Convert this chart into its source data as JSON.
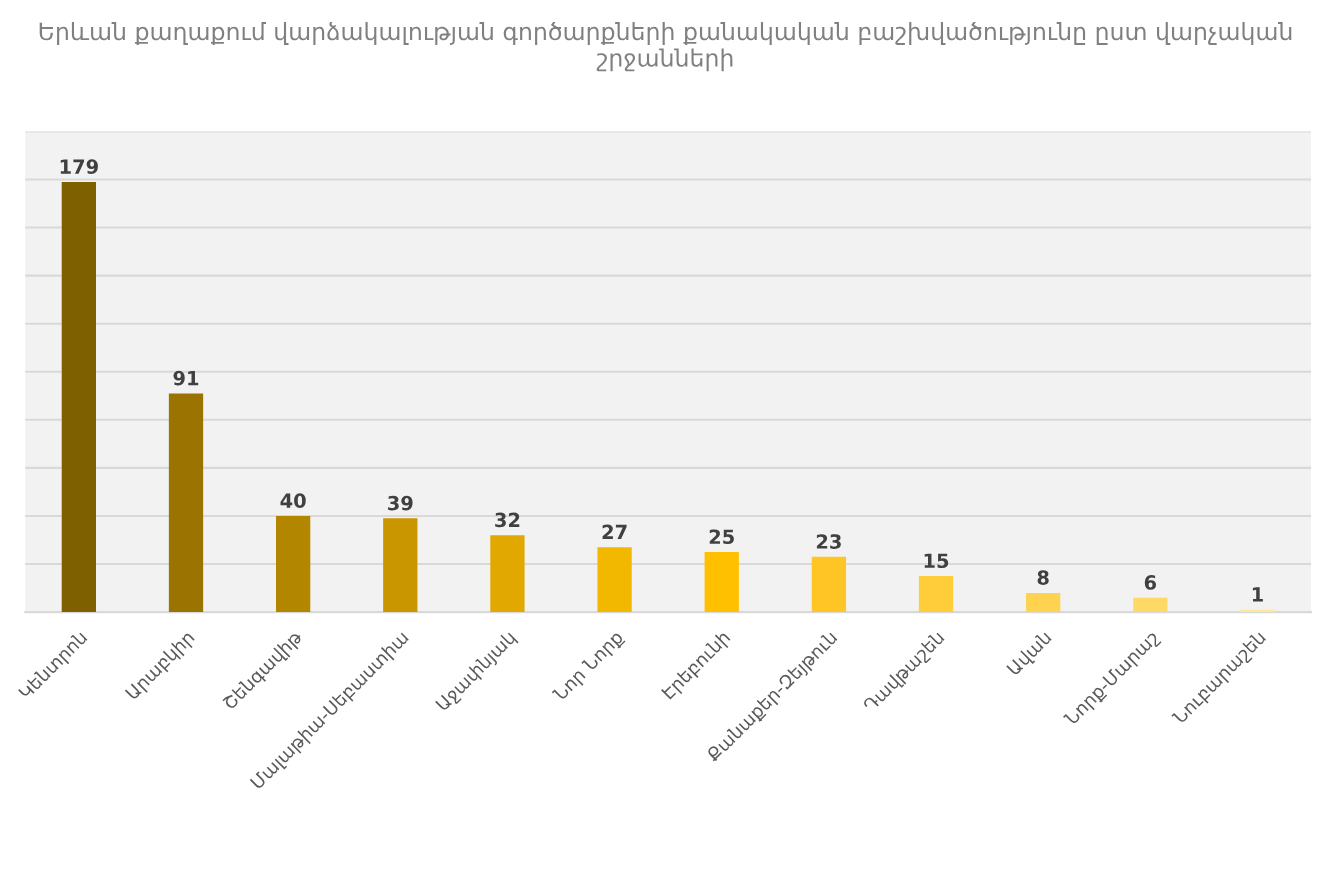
{
  "chart_data": {
    "type": "bar",
    "title": "Երևան քաղաքում վարձակալության գործարքների քանակական բաշխվածությունը ըստ վարչական շրջանների",
    "categories": [
      "Կենտրոն",
      "Արաբկիր",
      "Շենգավիթ",
      "Մալաթիա-Սեբաստիա",
      "Աջափնյակ",
      "Նոր Նորք",
      "Էրեբունի",
      "Քանաքեր-Զեյթուն",
      "Դավթաշեն",
      "Ավան",
      "Նորք-Մարաշ",
      "Նուբարաշեն"
    ],
    "values": [
      179,
      91,
      40,
      39,
      32,
      27,
      25,
      23,
      15,
      8,
      6,
      1
    ],
    "colors": [
      "#7f6000",
      "#9a7300",
      "#b38600",
      "#c99600",
      "#e0a800",
      "#f2b800",
      "#ffc000",
      "#ffc524",
      "#ffcc3a",
      "#ffd350",
      "#ffd966",
      "#ffe699"
    ],
    "ylim": [
      0,
      200
    ],
    "yticks": [
      {
        "value": 0,
        "label": null
      },
      {
        "value": 20,
        "label": null
      },
      {
        "value": 40,
        "label": null
      },
      {
        "value": 60,
        "label": null
      },
      {
        "value": 80,
        "label": null
      },
      {
        "value": 100,
        "label": null
      },
      {
        "value": 120,
        "label": null
      },
      {
        "value": 140,
        "label": null
      },
      {
        "value": 160,
        "label": null
      },
      {
        "value": 180,
        "label": null
      },
      {
        "value": 200,
        "label": null
      }
    ],
    "grid": "y",
    "tick_labels": "x",
    "data_labels": true
  }
}
